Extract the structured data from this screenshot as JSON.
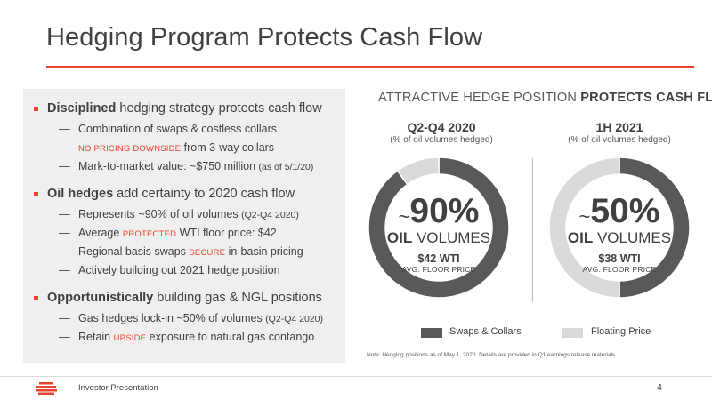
{
  "slide": {
    "title": "Hedging Program Protects Cash Flow",
    "page_number": "4",
    "footer": "Investor Presentation"
  },
  "left": {
    "b1": {
      "bold": "Disciplined",
      "rest": " hedging strategy protects cash flow",
      "s1": "Combination of swaps & costless collars",
      "s2_red": "NO PRICING DOWNSIDE",
      "s2_rest": " from 3-way collars",
      "s3": "Mark-to-market value: ~$750 million ",
      "s3_small": "(as of 5/1/20)"
    },
    "b2": {
      "bold": "Oil hedges",
      "rest": " add certainty to 2020 cash flow",
      "s1": "Represents ~90% of oil volumes ",
      "s1_small": "(Q2-Q4 2020)",
      "s2_pre": "Average ",
      "s2_red": "PROTECTED",
      "s2_rest": " WTI floor price: $42",
      "s3_pre": "Regional basis swaps ",
      "s3_red": "SECURE",
      "s3_rest": " in-basin pricing",
      "s4": "Actively building out 2021 hedge position"
    },
    "b3": {
      "bold": "Opportunistically",
      "rest": " building gas & NGL positions",
      "s1": "Gas hedges lock-in ~50% of volumes ",
      "s1_small": "(Q2-Q4 2020)",
      "s2_pre": "Retain ",
      "s2_red": "UPSIDE",
      "s2_rest": " exposure to natural gas contango"
    }
  },
  "right": {
    "heading_light": "ATTRACTIVE HEDGE POSITION ",
    "heading_bold": "PROTECTS CASH FLOW",
    "col1": {
      "title": "Q2-Q4 2020",
      "subtitle": "(% of oil volumes hedged)",
      "tilde": "~",
      "pct": "90%",
      "vol_bold": "OIL",
      "vol_rest": " VOLUMES",
      "wti": "$42 WTI",
      "floor": "AVG. FLOOR PRICE"
    },
    "col2": {
      "title": "1H 2021",
      "subtitle": "(% of oil volumes hedged)",
      "tilde": "~",
      "pct": "50%",
      "vol_bold": "OIL",
      "vol_rest": " VOLUMES",
      "wti": "$38 WTI",
      "floor": "AVG. FLOOR PRICE"
    },
    "legend": {
      "swaps": "Swaps & Collars",
      "floating": "Floating Price"
    },
    "note": "Note: Hedging positions as of May 1, 2020. Details are provided in Q1 earnings release materials."
  },
  "colors": {
    "accent": "#e8432e",
    "hedged": "#595959",
    "floating": "#d9d9d9"
  },
  "chart_data": [
    {
      "type": "pie",
      "title": "Q2-Q4 2020",
      "categories": [
        "Swaps & Collars",
        "Floating Price"
      ],
      "values": [
        90,
        10
      ]
    },
    {
      "type": "pie",
      "title": "1H 2021",
      "categories": [
        "Swaps & Collars",
        "Floating Price"
      ],
      "values": [
        50,
        50
      ]
    }
  ]
}
